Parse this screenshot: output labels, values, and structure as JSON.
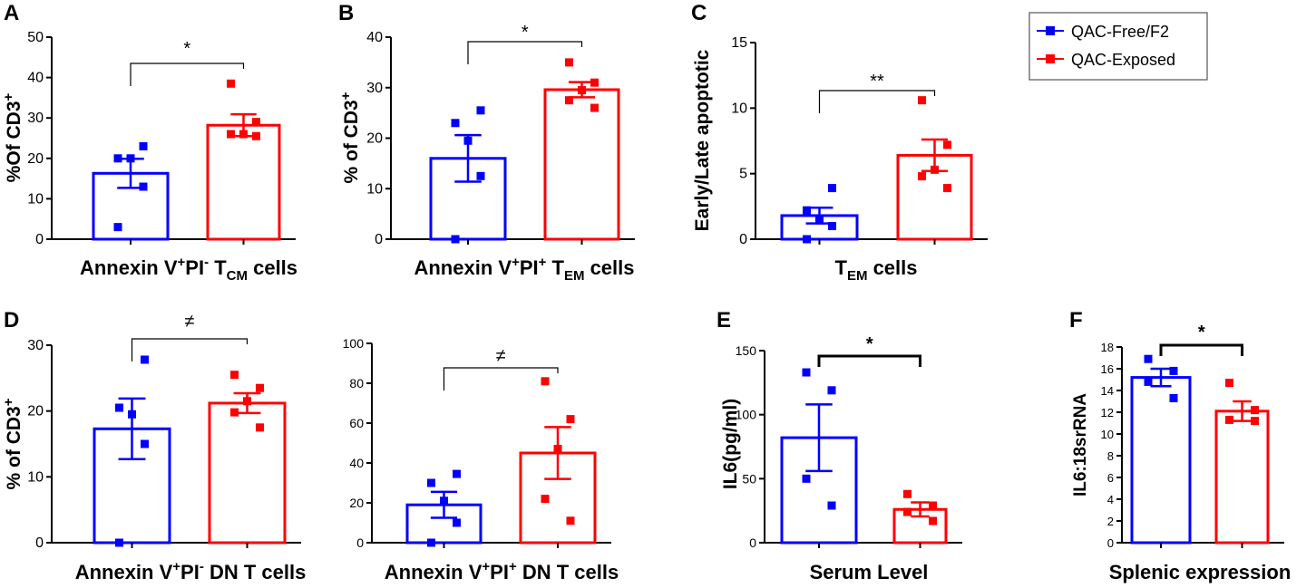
{
  "colors": {
    "free": "#0000ff",
    "exposed": "#ff0000",
    "axis": "#000000"
  },
  "legend": {
    "position": "top-right",
    "entries": [
      {
        "label": "QAC-Free/F2",
        "color": "#0000ff"
      },
      {
        "label": "QAC-Exposed",
        "color": "#ff0000"
      }
    ]
  },
  "chart_data": [
    {
      "id": "A",
      "type": "bar",
      "panel_label": "A",
      "ylabel": "%Of CD3",
      "ylabel_sup": "+",
      "ylim": [
        0,
        50
      ],
      "yticks": [
        0,
        10,
        20,
        30,
        40,
        50
      ],
      "xlabel_parts": [
        {
          "t": "Annexin V",
          "s": "n"
        },
        {
          "t": "+",
          "s": "sup"
        },
        {
          "t": "PI",
          "s": "n"
        },
        {
          "t": "-",
          "s": "sup"
        },
        {
          "t": "  T",
          "s": "n"
        },
        {
          "t": "CM",
          "s": "sub"
        },
        {
          "t": " cells",
          "s": "n"
        }
      ],
      "significance": "*",
      "series": [
        {
          "name": "QAC-Free/F2",
          "mean": 16.3,
          "sem": 3.6,
          "points": [
            3,
            13,
            20,
            20,
            23
          ]
        },
        {
          "name": "QAC-Exposed",
          "mean": 28.2,
          "sem": 2.7,
          "points": [
            38.5,
            29,
            26,
            26,
            25.5
          ]
        }
      ]
    },
    {
      "id": "B",
      "type": "bar",
      "panel_label": "B",
      "ylabel": "% of CD3",
      "ylabel_sup": "+",
      "ylim": [
        0,
        40
      ],
      "yticks": [
        0,
        10,
        20,
        30,
        40
      ],
      "xlabel_parts": [
        {
          "t": "Annexin V",
          "s": "n"
        },
        {
          "t": "+",
          "s": "sup"
        },
        {
          "t": "PI",
          "s": "n"
        },
        {
          "t": "+",
          "s": "sup"
        },
        {
          "t": " T",
          "s": "n"
        },
        {
          "t": "EM",
          "s": "sub"
        },
        {
          "t": " cells",
          "s": "n"
        }
      ],
      "significance": "*",
      "series": [
        {
          "name": "QAC-Free/F2",
          "mean": 16,
          "sem": 4.6,
          "points": [
            0,
            12.5,
            19.5,
            23,
            25.5
          ]
        },
        {
          "name": "QAC-Exposed",
          "mean": 29.6,
          "sem": 1.5,
          "points": [
            35,
            31,
            29.5,
            27.5,
            26
          ]
        }
      ]
    },
    {
      "id": "C",
      "type": "bar",
      "panel_label": "C",
      "ylabel": "Early/Late apoptotic",
      "ylabel_sup": "",
      "ylim": [
        0,
        15
      ],
      "yticks": [
        0,
        5,
        10,
        15
      ],
      "xlabel_parts": [
        {
          "t": "T",
          "s": "n"
        },
        {
          "t": "EM",
          "s": "sub"
        },
        {
          "t": " cells",
          "s": "n"
        }
      ],
      "significance": "**",
      "series": [
        {
          "name": "QAC-Free/F2",
          "mean": 1.8,
          "sem": 0.6,
          "points": [
            0,
            1,
            1.5,
            2.2,
            3.9
          ]
        },
        {
          "name": "QAC-Exposed",
          "mean": 6.4,
          "sem": 1.2,
          "points": [
            10.6,
            7.2,
            5.3,
            4.8,
            3.9
          ]
        }
      ]
    },
    {
      "id": "D1",
      "type": "bar",
      "panel_label": "D",
      "ylabel": "% of CD3",
      "ylabel_sup": "+",
      "ylim": [
        0,
        30
      ],
      "yticks": [
        0,
        10,
        20,
        30
      ],
      "xlabel_parts": [
        {
          "t": "Annexin V",
          "s": "n"
        },
        {
          "t": "+",
          "s": "sup"
        },
        {
          "t": "PI",
          "s": "n"
        },
        {
          "t": "-",
          "s": "sup"
        },
        {
          "t": " DN T cells",
          "s": "n"
        }
      ],
      "significance": "≠",
      "series": [
        {
          "name": "QAC-Free/F2",
          "mean": 17.3,
          "sem": 4.6,
          "points": [
            0,
            15,
            19.5,
            20.5,
            27.8
          ]
        },
        {
          "name": "QAC-Exposed",
          "mean": 21.2,
          "sem": 1.5,
          "points": [
            25.5,
            23.5,
            21.5,
            19.8,
            17.5
          ]
        }
      ]
    },
    {
      "id": "D2",
      "type": "bar",
      "panel_label": "",
      "ylabel": "",
      "ylabel_sup": "",
      "ylim": [
        0,
        100
      ],
      "yticks": [
        0,
        20,
        40,
        60,
        80,
        100
      ],
      "xlabel_parts": [
        {
          "t": "Annexin V",
          "s": "n"
        },
        {
          "t": "+",
          "s": "sup"
        },
        {
          "t": "PI",
          "s": "n"
        },
        {
          "t": "+",
          "s": "sup"
        },
        {
          "t": " DN T cells",
          "s": "n"
        }
      ],
      "significance": "≠",
      "series": [
        {
          "name": "QAC-Free/F2",
          "mean": 19,
          "sem": 6.5,
          "points": [
            0,
            10,
            21,
            30,
            34.5
          ]
        },
        {
          "name": "QAC-Exposed",
          "mean": 45,
          "sem": 13,
          "points": [
            81,
            62,
            47,
            22,
            11
          ]
        }
      ]
    },
    {
      "id": "E",
      "type": "bar",
      "panel_label": "E",
      "ylabel": "IL6(pg/ml)",
      "ylabel_sup": "",
      "ylim": [
        0,
        150
      ],
      "yticks": [
        0,
        50,
        100,
        150
      ],
      "xlabel_parts": [
        {
          "t": "Serum Level",
          "s": "n"
        }
      ],
      "significance": "*",
      "series": [
        {
          "name": "QAC-Free/F2",
          "mean": 82,
          "sem": 26,
          "points": [
            133,
            119,
            50,
            29
          ]
        },
        {
          "name": "QAC-Exposed",
          "mean": 26,
          "sem": 5.5,
          "points": [
            38,
            29,
            24,
            17
          ]
        }
      ]
    },
    {
      "id": "F",
      "type": "bar",
      "panel_label": "F",
      "ylabel": "IL6:18srRNA",
      "ylabel_sup": "",
      "ylim": [
        0,
        18
      ],
      "yticks": [
        0,
        2,
        4,
        6,
        8,
        10,
        12,
        14,
        16,
        18
      ],
      "xlabel_parts": [
        {
          "t": "Splenic expression",
          "s": "n"
        }
      ],
      "significance": "*",
      "series": [
        {
          "name": "QAC-Free/F2",
          "mean": 15.2,
          "sem": 0.8,
          "points": [
            16.9,
            15.8,
            14.8,
            13.3
          ]
        },
        {
          "name": "QAC-Exposed",
          "mean": 12.1,
          "sem": 0.9,
          "points": [
            14.7,
            12.2,
            11.3,
            11.2
          ]
        }
      ]
    }
  ]
}
